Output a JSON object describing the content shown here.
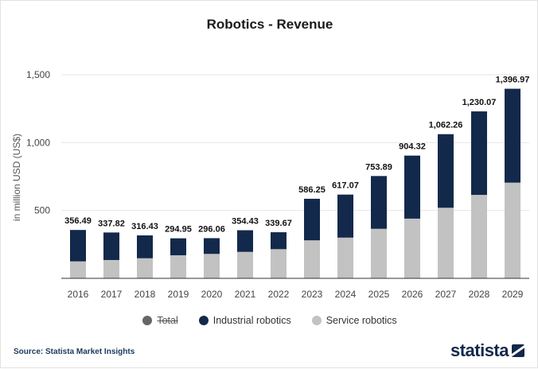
{
  "title": "Robotics - Revenue",
  "source": "Source: Statista Market Insights",
  "brand": "statista",
  "legend": {
    "total": "Total",
    "industrial": "Industrial robotics",
    "service": "Service robotics"
  },
  "colors": {
    "industrial": "#13294b",
    "service": "#c2c2c2",
    "total_dot": "#666666",
    "grid": "#e6e6e6"
  },
  "chart_data": {
    "type": "bar",
    "stacked": true,
    "title": "Robotics - Revenue",
    "ylabel": "in million USD (US$)",
    "xlabel": "",
    "ylim": [
      0,
      1500
    ],
    "yticks": [
      500,
      1000,
      1500
    ],
    "ytick_labels": [
      "500",
      "1,000",
      "1,500"
    ],
    "grid": true,
    "legend_position": "bottom",
    "categories": [
      "2016",
      "2017",
      "2018",
      "2019",
      "2020",
      "2021",
      "2022",
      "2023",
      "2024",
      "2025",
      "2026",
      "2027",
      "2028",
      "2029"
    ],
    "series": [
      {
        "name": "Service robotics",
        "values": [
          125,
          135,
          148,
          170,
          180,
          195,
          215,
          280,
          300,
          365,
          440,
          520,
          615,
          705
        ]
      },
      {
        "name": "Industrial robotics",
        "values": [
          231.49,
          202.82,
          168.43,
          124.95,
          116.06,
          159.43,
          124.67,
          306.25,
          317.07,
          388.89,
          464.32,
          542.26,
          615.07,
          691.97
        ]
      }
    ],
    "totals": [
      356.49,
      337.82,
      316.43,
      294.95,
      296.06,
      354.43,
      339.67,
      586.25,
      617.07,
      753.89,
      904.32,
      1062.26,
      1230.07,
      1396.97
    ],
    "total_labels": [
      "356.49",
      "337.82",
      "316.43",
      "294.95",
      "296.06",
      "354.43",
      "339.67",
      "586.25",
      "617.07",
      "753.89",
      "904.32",
      "1,062.26",
      "1,230.07",
      "1,396.97"
    ]
  }
}
